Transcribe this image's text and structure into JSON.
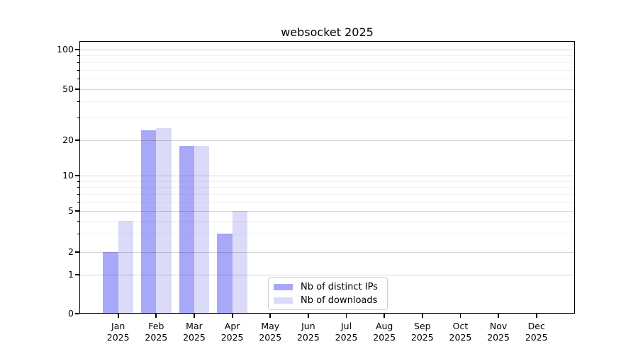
{
  "chart_data": {
    "type": "bar",
    "title": "websocket 2025",
    "categories": [
      "Jan",
      "Feb",
      "Mar",
      "Apr",
      "May",
      "Jun",
      "Jul",
      "Aug",
      "Sep",
      "Oct",
      "Nov",
      "Dec"
    ],
    "category_year": "2025",
    "series": [
      {
        "name": "Nb of distinct IPs",
        "color": "#a8a8f8",
        "values": [
          2,
          24,
          18,
          3,
          0,
          0,
          0,
          0,
          0,
          0,
          0,
          0
        ]
      },
      {
        "name": "Nb of downloads",
        "color": "#dbdbf9",
        "values": [
          4,
          25,
          18,
          5,
          0,
          0,
          0,
          0,
          0,
          0,
          0,
          0
        ]
      }
    ],
    "yscale": "symlog",
    "y_major_ticks": [
      0,
      1,
      2,
      5,
      10,
      20,
      50,
      100
    ],
    "y_minor_gridlines": [
      3,
      4,
      6,
      7,
      8,
      9,
      30,
      40,
      60,
      70,
      80,
      90
    ],
    "ylim": [
      0,
      120
    ],
    "xlabel": "",
    "ylabel": "",
    "grid": "horizontal",
    "legend_position": "lower center",
    "colors": {
      "bar_distinct_ips": "#a8a8f8",
      "bar_downloads": "#dbdbf9",
      "major_grid": "#d9d9d9",
      "minor_grid": "#efefef",
      "axis": "#000000",
      "text": "#000000",
      "legend_border": "#cccccc",
      "background": "#ffffff"
    }
  }
}
